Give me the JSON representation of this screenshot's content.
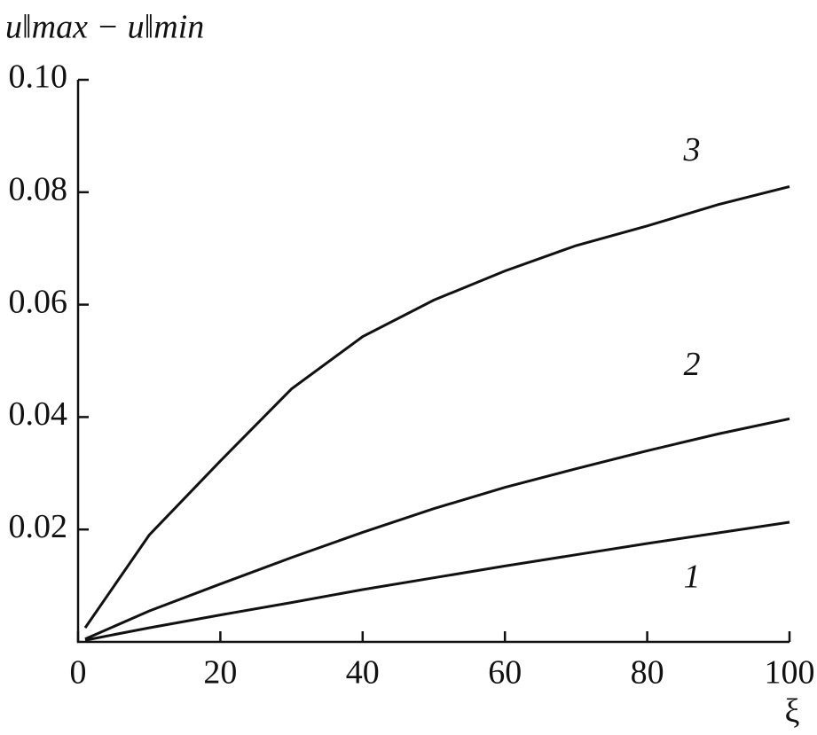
{
  "chart_data": {
    "type": "line",
    "y_label": "u‖max − u‖min",
    "x_label": "ξ",
    "x": [
      1,
      10,
      20,
      30,
      40,
      50,
      60,
      70,
      80,
      90,
      100
    ],
    "series": [
      {
        "name": "1",
        "color": "#111111",
        "values": [
          0.0003,
          0.0025,
          0.0048,
          0.007,
          0.0093,
          0.0114,
          0.0135,
          0.0155,
          0.0175,
          0.0194,
          0.0213
        ]
      },
      {
        "name": "2",
        "color": "#111111",
        "values": [
          0.0005,
          0.0055,
          0.0103,
          0.015,
          0.0195,
          0.0237,
          0.0275,
          0.0308,
          0.034,
          0.037,
          0.0397
        ]
      },
      {
        "name": "3",
        "color": "#111111",
        "values": [
          0.0025,
          0.019,
          0.0322,
          0.045,
          0.0543,
          0.0608,
          0.066,
          0.0705,
          0.074,
          0.0778,
          0.081
        ]
      }
    ],
    "xlim": [
      0,
      100
    ],
    "xticks": [
      0,
      20,
      40,
      60,
      80,
      100
    ],
    "ylim": [
      0,
      0.1
    ],
    "yticks": [
      0.02,
      0.04,
      0.06,
      0.08,
      {
        "value": 0.1,
        "label": "0.10"
      }
    ],
    "grid": false
  }
}
